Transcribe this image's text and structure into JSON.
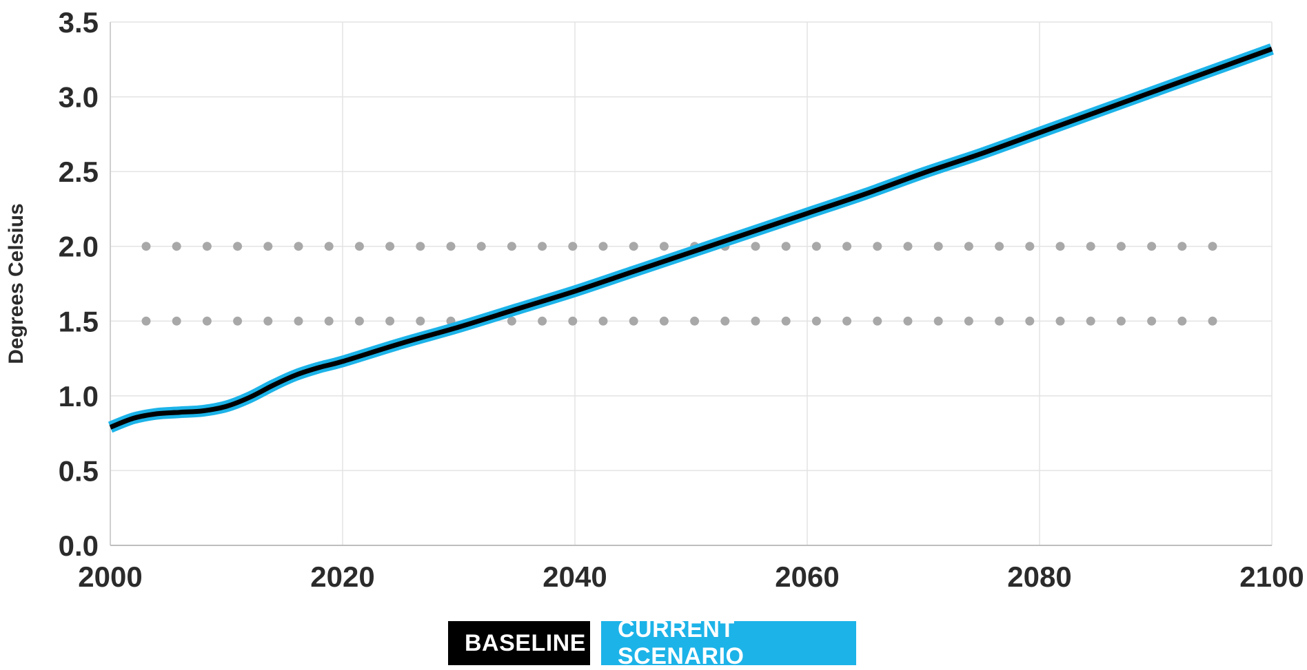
{
  "chart_data": {
    "type": "line",
    "title": "",
    "xlabel": "",
    "ylabel": "Degrees Celsius",
    "xlim": [
      2000,
      2100
    ],
    "ylim": [
      0,
      3.5
    ],
    "x_ticks": [
      "2000",
      "2020",
      "2040",
      "2060",
      "2080",
      "2100"
    ],
    "y_ticks": [
      "0.0",
      "0.5",
      "1.0",
      "1.5",
      "2.0",
      "2.5",
      "3.0",
      "3.5"
    ],
    "grid": true,
    "reference_lines": [
      {
        "y": 1.5,
        "style": "dotted"
      },
      {
        "y": 2.0,
        "style": "dotted"
      }
    ],
    "x": [
      2000,
      2002,
      2004,
      2006,
      2008,
      2010,
      2012,
      2014,
      2016,
      2018,
      2020,
      2025,
      2030,
      2035,
      2040,
      2045,
      2050,
      2055,
      2060,
      2065,
      2070,
      2075,
      2080,
      2085,
      2090,
      2095,
      2100
    ],
    "series": [
      {
        "name": "BASELINE",
        "color": "#000000",
        "values": [
          0.79,
          0.85,
          0.88,
          0.89,
          0.9,
          0.93,
          0.99,
          1.07,
          1.14,
          1.19,
          1.23,
          1.35,
          1.46,
          1.58,
          1.7,
          1.83,
          1.96,
          2.09,
          2.22,
          2.35,
          2.49,
          2.62,
          2.76,
          2.9,
          3.04,
          3.18,
          3.32
        ]
      },
      {
        "name": "CURRENT SCENARIO",
        "color": "#1cb3e8",
        "values": [
          0.79,
          0.85,
          0.88,
          0.89,
          0.9,
          0.93,
          0.99,
          1.07,
          1.14,
          1.19,
          1.23,
          1.35,
          1.46,
          1.58,
          1.7,
          1.83,
          1.96,
          2.09,
          2.22,
          2.35,
          2.49,
          2.62,
          2.76,
          2.9,
          3.04,
          3.18,
          3.32
        ]
      }
    ],
    "legend": {
      "placement": "bottom-center",
      "items": [
        {
          "label": "BASELINE",
          "color": "#000000"
        },
        {
          "label": "CURRENT SCENARIO",
          "color": "#1cb3e8"
        }
      ]
    }
  }
}
